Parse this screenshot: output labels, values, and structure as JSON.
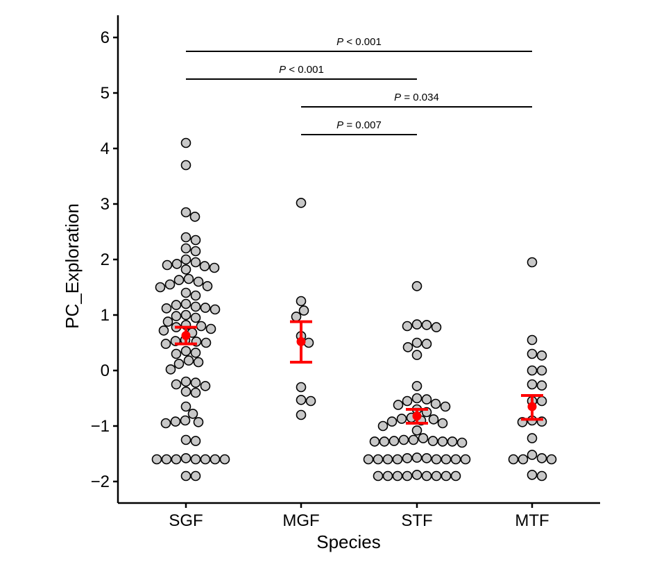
{
  "chart_data": {
    "type": "scatter",
    "subtype": "beeswarm-with-mean-se",
    "title": "",
    "xlabel": "Species",
    "ylabel": "PC_Exploration",
    "categories": [
      "SGF",
      "MGF",
      "STF",
      "MTF"
    ],
    "ylim": [
      -2.4,
      6.4
    ],
    "yticks": [
      -2,
      -1,
      0,
      1,
      2,
      3,
      4,
      5,
      6
    ],
    "ytick_labels": [
      "−2",
      "−1",
      "0",
      "1",
      "2",
      "3",
      "4",
      "5",
      "6"
    ],
    "grid": false,
    "colors": {
      "point_fill": "#c8c8c8",
      "point_stroke": "#000000",
      "summary": "#ff0000",
      "axis": "#000000"
    },
    "series": [
      {
        "name": "SGF",
        "values": [
          4.1,
          3.7,
          2.85,
          2.77,
          2.4,
          2.35,
          2.2,
          2.15,
          2.0,
          1.95,
          1.92,
          1.9,
          1.88,
          1.85,
          1.82,
          1.65,
          1.63,
          1.6,
          1.55,
          1.52,
          1.5,
          1.4,
          1.35,
          1.2,
          1.18,
          1.15,
          1.13,
          1.12,
          1.1,
          1.0,
          0.98,
          0.95,
          0.88,
          0.82,
          0.8,
          0.78,
          0.75,
          0.72,
          0.68,
          0.55,
          0.53,
          0.52,
          0.5,
          0.48,
          0.35,
          0.32,
          0.3,
          0.18,
          0.15,
          0.12,
          0.02,
          -0.2,
          -0.22,
          -0.25,
          -0.28,
          -0.38,
          -0.4,
          -0.65,
          -0.78,
          -0.9,
          -0.92,
          -0.93,
          -0.95,
          -1.25,
          -1.27,
          -1.58,
          -1.6,
          -1.6,
          -1.6,
          -1.6,
          -1.6,
          -1.6,
          -1.6,
          -1.9,
          -1.9
        ],
        "mean": 0.63,
        "se_low": 0.48,
        "se_high": 0.78
      },
      {
        "name": "MGF",
        "values": [
          3.02,
          1.25,
          1.08,
          0.97,
          0.62,
          0.5,
          -0.3,
          -0.53,
          -0.55,
          -0.8
        ],
        "mean": 0.52,
        "se_low": 0.15,
        "se_high": 0.88
      },
      {
        "name": "STF",
        "values": [
          1.52,
          0.83,
          0.82,
          0.8,
          0.78,
          0.5,
          0.48,
          0.42,
          0.28,
          -0.28,
          -0.5,
          -0.52,
          -0.55,
          -0.6,
          -0.62,
          -0.65,
          -0.7,
          -0.75,
          -0.85,
          -0.87,
          -0.88,
          -0.9,
          -0.92,
          -0.95,
          -1.0,
          -1.08,
          -1.22,
          -1.25,
          -1.25,
          -1.27,
          -1.27,
          -1.28,
          -1.28,
          -1.28,
          -1.28,
          -1.3,
          -1.57,
          -1.58,
          -1.58,
          -1.6,
          -1.6,
          -1.6,
          -1.6,
          -1.6,
          -1.6,
          -1.6,
          -1.6,
          -1.88,
          -1.9,
          -1.9,
          -1.9,
          -1.9,
          -1.9,
          -1.9,
          -1.9,
          -1.9
        ],
        "mean": -0.82,
        "se_low": -0.95,
        "se_high": -0.7
      },
      {
        "name": "MTF",
        "values": [
          1.95,
          0.55,
          0.3,
          0.27,
          0.0,
          0.0,
          -0.25,
          -0.27,
          -0.55,
          -0.55,
          -0.9,
          -0.92,
          -0.93,
          -1.22,
          -1.52,
          -1.58,
          -1.6,
          -1.6,
          -1.6,
          -1.88,
          -1.9
        ],
        "mean": -0.65,
        "se_low": -0.88,
        "se_high": -0.45
      }
    ],
    "comparisons": [
      {
        "from": "SGF",
        "to": "MTF",
        "y": 5.75,
        "label_p": "P",
        "label_rest": " < 0.001"
      },
      {
        "from": "SGF",
        "to": "STF",
        "y": 5.25,
        "label_p": "P",
        "label_rest": " < 0.001"
      },
      {
        "from": "MGF",
        "to": "MTF",
        "y": 4.75,
        "label_p": "P",
        "label_rest": " = 0.034"
      },
      {
        "from": "MGF",
        "to": "STF",
        "y": 4.25,
        "label_p": "P",
        "label_rest": " = 0.007"
      }
    ]
  }
}
